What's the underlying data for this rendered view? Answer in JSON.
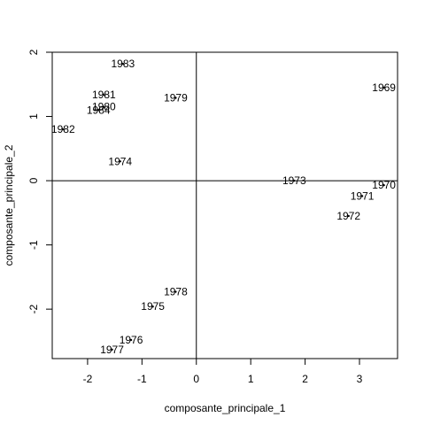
{
  "chart_data": {
    "type": "scatter",
    "xlabel": "composante_principale_1",
    "ylabel": "composante_principale_2",
    "xlim": [
      -2.65,
      3.7
    ],
    "ylim": [
      -2.77,
      2.0
    ],
    "xticks": [
      "-2",
      "-1",
      "0",
      "1",
      "2",
      "3"
    ],
    "yticks": [
      "-2",
      "-1",
      "0",
      "1",
      "2"
    ],
    "reference_lines": {
      "x": 0,
      "y": 0
    },
    "points": [
      {
        "label": "1969",
        "x": 3.45,
        "y": 1.45
      },
      {
        "label": "1970",
        "x": 3.45,
        "y": -0.07
      },
      {
        "label": "1971",
        "x": 3.05,
        "y": -0.24
      },
      {
        "label": "1972",
        "x": 2.8,
        "y": -0.55
      },
      {
        "label": "1973",
        "x": 1.8,
        "y": 0.0
      },
      {
        "label": "1974",
        "x": -1.4,
        "y": 0.3
      },
      {
        "label": "1975",
        "x": -0.8,
        "y": -1.96
      },
      {
        "label": "1976",
        "x": -1.2,
        "y": -2.48
      },
      {
        "label": "1977",
        "x": -1.55,
        "y": -2.63
      },
      {
        "label": "1978",
        "x": -0.38,
        "y": -1.73
      },
      {
        "label": "1979",
        "x": -0.38,
        "y": 1.29
      },
      {
        "label": "1980",
        "x": -1.7,
        "y": 1.15
      },
      {
        "label": "1981",
        "x": -1.7,
        "y": 1.34
      },
      {
        "label": "1982",
        "x": -2.45,
        "y": 0.8
      },
      {
        "label": "1983",
        "x": -1.35,
        "y": 1.82
      },
      {
        "label": "1984",
        "x": -1.8,
        "y": 1.1
      }
    ]
  }
}
